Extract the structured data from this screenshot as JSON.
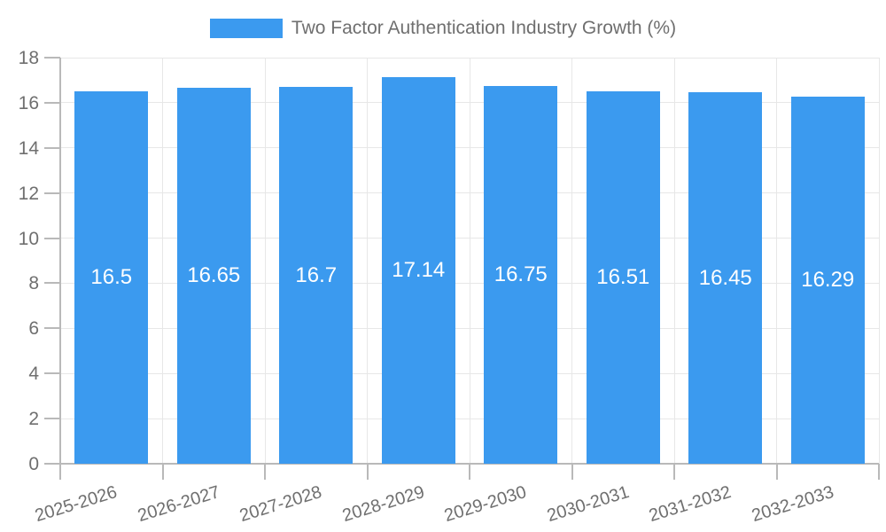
{
  "chart_data": {
    "type": "bar",
    "title": "Two Factor Authentication Industry Growth (%)",
    "legend": {
      "label": "Two Factor Authentication Industry Growth (%)",
      "position": "top"
    },
    "categories": [
      "2025-2026",
      "2026-2027",
      "2027-2028",
      "2028-2029",
      "2029-2030",
      "2030-2031",
      "2031-2032",
      "2032-2033"
    ],
    "values": [
      16.5,
      16.65,
      16.7,
      17.14,
      16.75,
      16.51,
      16.45,
      16.29
    ],
    "value_labels": [
      "16.5",
      "16.65",
      "16.7",
      "17.14",
      "16.75",
      "16.51",
      "16.45",
      "16.29"
    ],
    "xlabel": "",
    "ylabel": "",
    "ylim": [
      0,
      18
    ],
    "yticks": [
      0,
      2,
      4,
      6,
      8,
      10,
      12,
      14,
      16,
      18
    ],
    "grid": true,
    "colors": {
      "bar": "#3B9AEF",
      "grid_line": "#e7e7e7",
      "axis_line": "#b9b9b9",
      "tick_text": "#6f6f6f",
      "value_label_text": "#ffffff",
      "background": "#ffffff"
    }
  }
}
